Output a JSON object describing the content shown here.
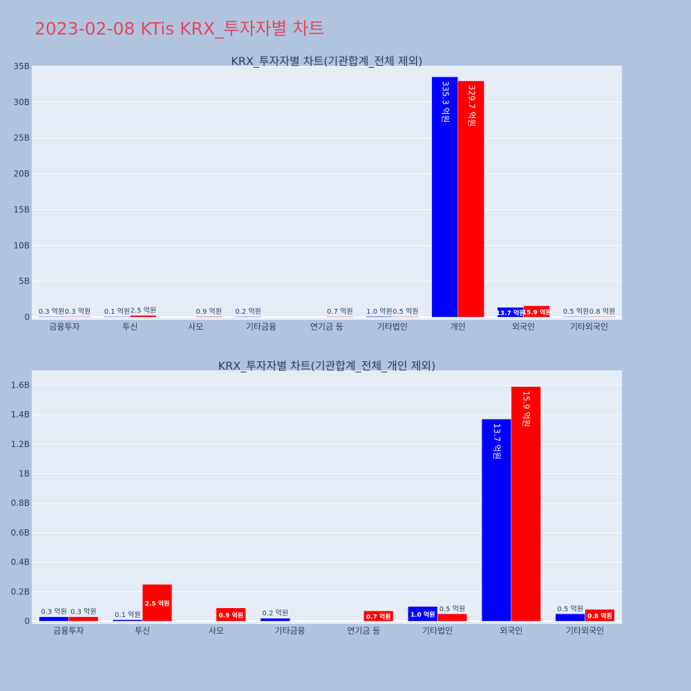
{
  "page": {
    "title": "2023-02-08 KTis KRX_투자자별 차트"
  },
  "colors": {
    "page_background": "#b0c4de",
    "plot_background": "#e5ecf6",
    "title": "#e8455f",
    "series_1": "#0000ff",
    "series_2": "#ff0000",
    "axis_text": "#2a3f5f"
  },
  "chart_data": [
    {
      "type": "bar",
      "title": "KRX_투자자별 차트(기관합계_전체 제외)",
      "xlabel": "",
      "ylabel": "",
      "ylim": [
        0,
        3500000000.0
      ],
      "grid": true,
      "y_ticks": [
        {
          "value": 0,
          "label": "0"
        },
        {
          "value": 500000000.0,
          "label": "5B"
        },
        {
          "value": 1000000000.0,
          "label": "10B"
        },
        {
          "value": 1500000000.0,
          "label": "15B"
        },
        {
          "value": 2000000000.0,
          "label": "20B"
        },
        {
          "value": 2500000000.0,
          "label": "25B"
        },
        {
          "value": 3000000000.0,
          "label": "30B"
        },
        {
          "value": 3500000000.0,
          "label": "35B"
        }
      ],
      "categories": [
        "금융투자",
        "투신",
        "사모",
        "기타금융",
        "연기금 등",
        "기타법인",
        "개인",
        "외국인",
        "기타외국인"
      ],
      "series": [
        {
          "color": "#0000ff",
          "values": [
            3000000.0,
            1000000.0,
            null,
            2000000.0,
            null,
            10000000.0,
            3353000000.0,
            137000000.0,
            5000000.0
          ],
          "labels": [
            "0.3 억원",
            "0.1 억원",
            "",
            "0.2 억원",
            "",
            "1.0 억원",
            "335.3 억원",
            "13.7 억원",
            "0.5 억원"
          ]
        },
        {
          "color": "#ff0000",
          "values": [
            3000000.0,
            25000000.0,
            9000000.0,
            null,
            7000000.0,
            5000000.0,
            3297000000.0,
            159000000.0,
            8000000.0
          ],
          "labels": [
            "0.3 억원",
            "2.5 억원",
            "0.9 억원",
            "",
            "0.7 억원",
            "0.5 억원",
            "329.7 억원",
            "15.9 억원",
            "0.8 억원"
          ]
        }
      ]
    },
    {
      "type": "bar",
      "title": "KRX_투자자별 차트(기관합계_전체_개인 제외)",
      "xlabel": "",
      "ylabel": "",
      "ylim": [
        0,
        170000000.0
      ],
      "grid": true,
      "y_ticks": [
        {
          "value": 0,
          "label": "0"
        },
        {
          "value": 20000000.0,
          "label": "0.2B"
        },
        {
          "value": 40000000.0,
          "label": "0.4B"
        },
        {
          "value": 60000000.0,
          "label": "0.6B"
        },
        {
          "value": 80000000.0,
          "label": "0.8B"
        },
        {
          "value": 100000000.0,
          "label": "1B"
        },
        {
          "value": 120000000.0,
          "label": "1.2B"
        },
        {
          "value": 140000000.0,
          "label": "1.4B"
        },
        {
          "value": 160000000.0,
          "label": "1.6B"
        }
      ],
      "categories": [
        "금융투자",
        "투신",
        "사모",
        "기타금융",
        "연기금 등",
        "기타법인",
        "외국인",
        "기타외국인"
      ],
      "series": [
        {
          "color": "#0000ff",
          "values": [
            3000000.0,
            1000000.0,
            null,
            2000000.0,
            null,
            10000000.0,
            137000000.0,
            5000000.0
          ],
          "labels": [
            "0.3 억원",
            "0.1 억원",
            "",
            "0.2 억원",
            "",
            "1.0 억원",
            "13.7 억원",
            "0.5 억원"
          ]
        },
        {
          "color": "#ff0000",
          "values": [
            3000000.0,
            25000000.0,
            9000000.0,
            null,
            7000000.0,
            5000000.0,
            159000000.0,
            8000000.0
          ],
          "labels": [
            "0.3 억원",
            "2.5 억원",
            "0.9 억원",
            "",
            "0.7 억원",
            "0.5 억원",
            "15.9 억원",
            "0.8 억원"
          ]
        }
      ]
    }
  ]
}
